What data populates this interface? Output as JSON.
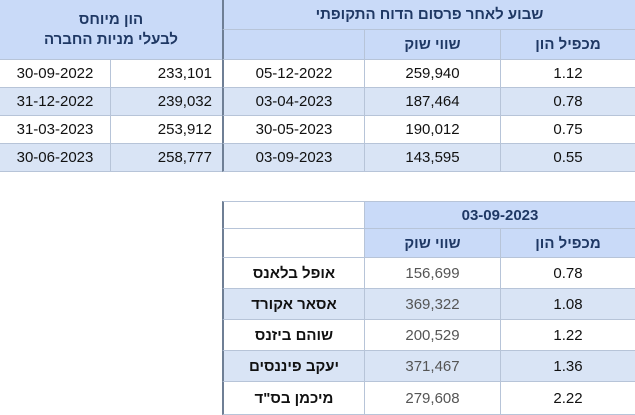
{
  "top_table": {
    "equity_header": [
      "הון מיוחס",
      "לבעלי מניות החברה"
    ],
    "week_header": "שבוע לאחר פרסום הדוח התקופתי",
    "col_market_value": "שווי שוק",
    "col_multiplier": "מכפיל הון",
    "rows": [
      {
        "equity_date": "30-09-2022",
        "equity_value": "233,101",
        "week_date": "05-12-2022",
        "market_value": "259,940",
        "multiplier": "1.12"
      },
      {
        "equity_date": "31-12-2022",
        "equity_value": "239,032",
        "week_date": "03-04-2023",
        "market_value": "187,464",
        "multiplier": "0.78"
      },
      {
        "equity_date": "31-03-2023",
        "equity_value": "253,912",
        "week_date": "30-05-2023",
        "market_value": "190,012",
        "multiplier": "0.75"
      },
      {
        "equity_date": "30-06-2023",
        "equity_value": "258,777",
        "week_date": "03-09-2023",
        "market_value": "143,595",
        "multiplier": "0.55"
      }
    ]
  },
  "bottom_table": {
    "date_header": "03-09-2023",
    "col_market_value": "שווי שוק",
    "col_multiplier": "מכפיל הון",
    "rows": [
      {
        "company": "אופל בלאנס",
        "market_value": "156,699",
        "multiplier": "0.78"
      },
      {
        "company": "אסאר אקורד",
        "market_value": "369,322",
        "multiplier": "1.08"
      },
      {
        "company": "שוהם ביזנס",
        "market_value": "200,529",
        "multiplier": "1.22"
      },
      {
        "company": "יעקב פיננסים",
        "market_value": "371,467",
        "multiplier": "1.36"
      },
      {
        "company": "מיכמן בס\"ד",
        "market_value": "279,608",
        "multiplier": "2.22"
      }
    ]
  }
}
